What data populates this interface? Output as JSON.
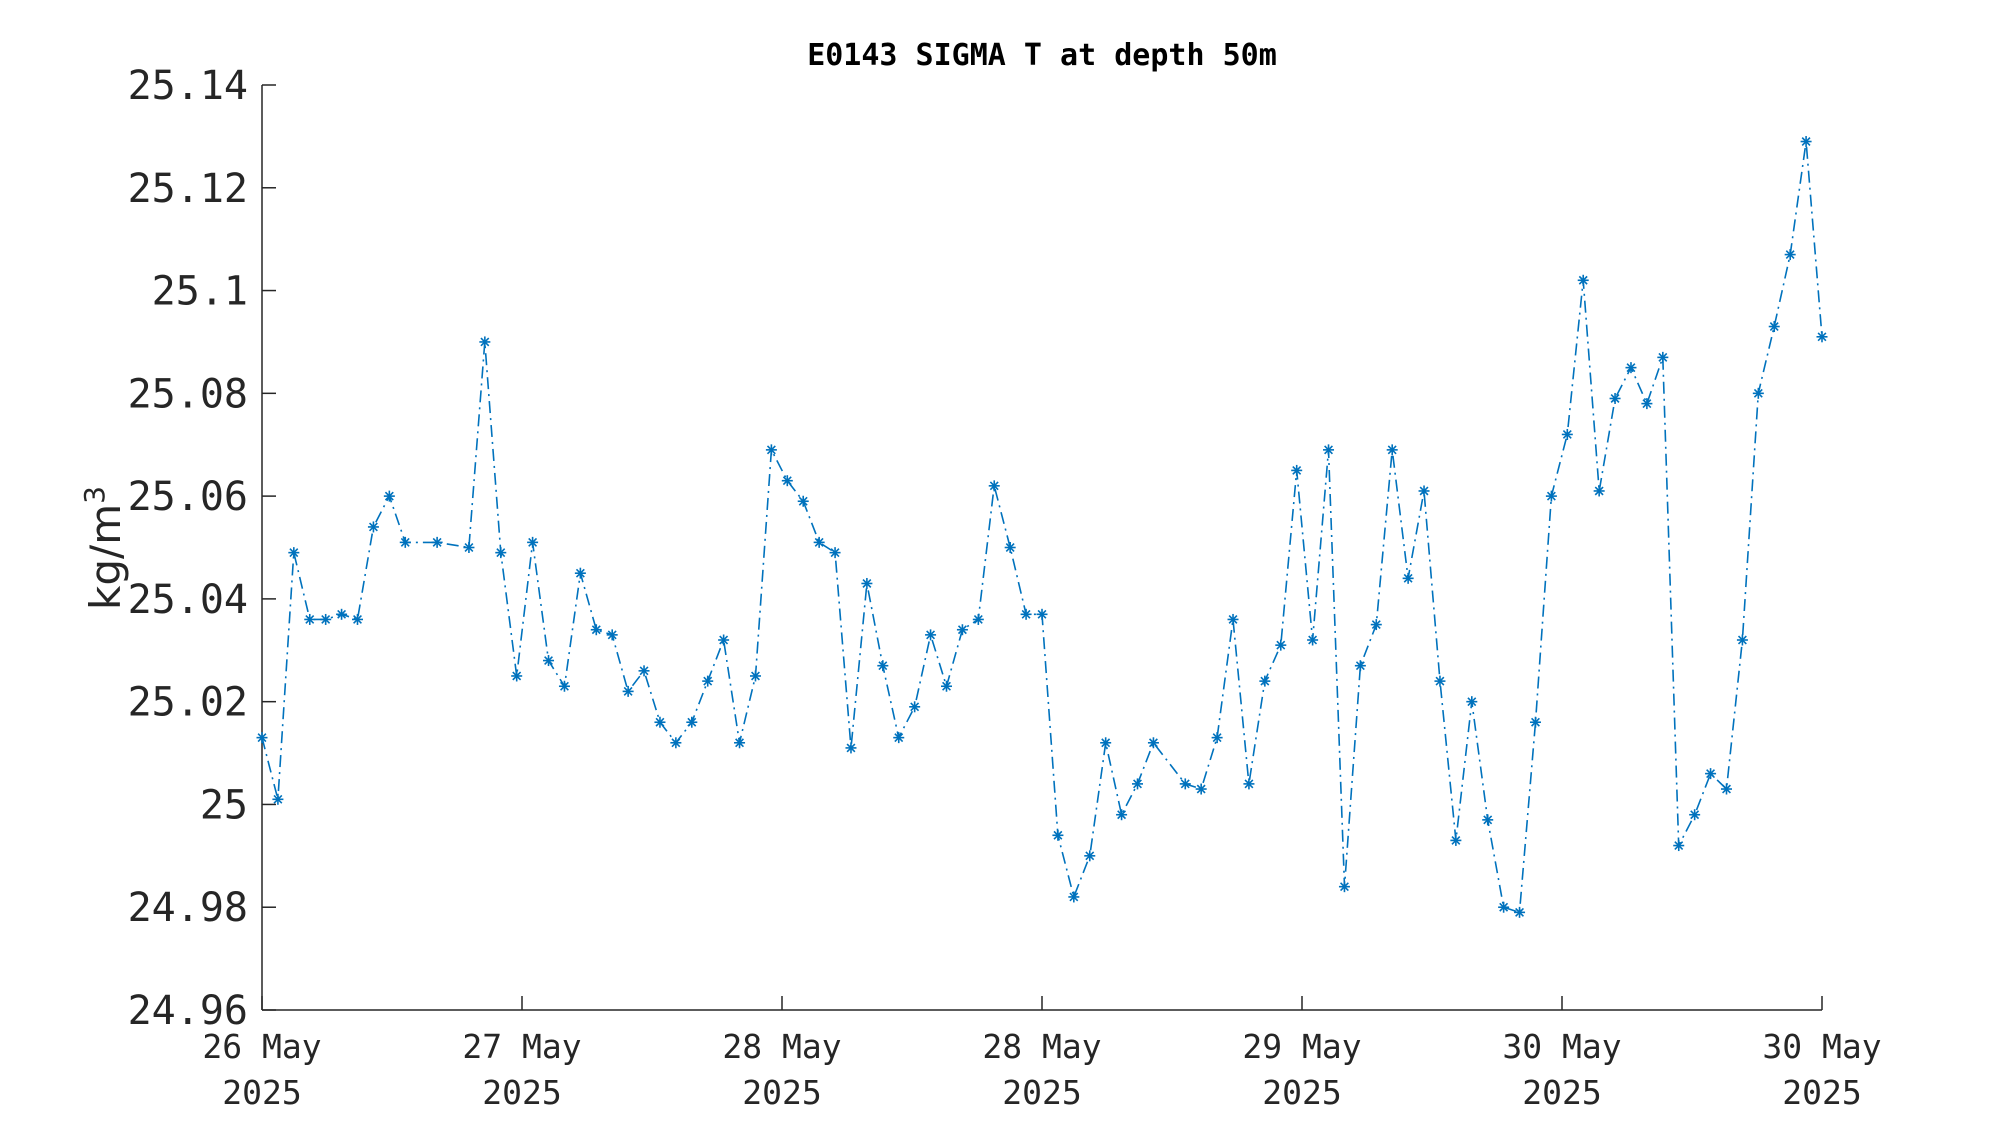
{
  "chart_data": {
    "type": "line",
    "title": "E0143 SIGMA T at depth 50m",
    "ylabel": "kg/m",
    "ylabel_superscript": "3",
    "ylim": [
      24.96,
      25.14
    ],
    "yticks": [
      24.96,
      24.98,
      25,
      25.02,
      25.04,
      25.06,
      25.08,
      25.1,
      25.12,
      25.14
    ],
    "ytick_labels": [
      "24.96",
      "24.98",
      "25",
      "25.02",
      "25.04",
      "25.06",
      "25.08",
      "25.1",
      "25.12",
      "25.14"
    ],
    "xlim": [
      0,
      6
    ],
    "xticks": [
      0,
      1,
      2,
      3,
      4,
      5,
      6
    ],
    "xtick_labels": [
      [
        "26 May",
        "2025"
      ],
      [
        "27 May",
        "2025"
      ],
      [
        "28 May",
        "2025"
      ],
      [
        "28 May",
        "2025"
      ],
      [
        "29 May",
        "2025"
      ],
      [
        "30 May",
        "2025"
      ],
      [
        "30 May",
        "2025"
      ]
    ],
    "marker": "asterisk",
    "line_style": "dash-dot",
    "color": "#0072BD",
    "grid": false,
    "series": [
      {
        "x": [
          0,
          0.0612,
          0.1224,
          0.1837,
          0.2449,
          0.3061,
          0.3673,
          0.4286,
          0.4898,
          0.551,
          0.6735,
          0.7959,
          0.8571,
          0.9184,
          0.9796,
          1.0408,
          1.102,
          1.1633,
          1.2245,
          1.2857,
          1.3469,
          1.4082,
          1.4694,
          1.5306,
          1.5918,
          1.6531,
          1.7143,
          1.7755,
          1.8367,
          1.898,
          1.9592,
          2.0204,
          2.0816,
          2.1429,
          2.2041,
          2.2653,
          2.3265,
          2.3878,
          2.449,
          2.5102,
          2.5714,
          2.6327,
          2.6939,
          2.7551,
          2.8163,
          2.8776,
          2.9388,
          3.0,
          3.0612,
          3.1224,
          3.1837,
          3.2449,
          3.3061,
          3.3673,
          3.4286,
          3.551,
          3.6122,
          3.6735,
          3.7347,
          3.7959,
          3.8571,
          3.9184,
          3.9796,
          4.0408,
          4.102,
          4.1633,
          4.2245,
          4.2857,
          4.3469,
          4.4082,
          4.4694,
          4.5306,
          4.5918,
          4.6531,
          4.7143,
          4.7755,
          4.8367,
          4.898,
          4.9592,
          5.0204,
          5.0816,
          5.1429,
          5.2041,
          5.2653,
          5.3265,
          5.3878,
          5.449,
          5.5102,
          5.5714,
          5.6327,
          5.6939,
          5.7551,
          5.8163,
          5.8776,
          5.9388,
          6.0
        ],
        "y": [
          25.013,
          25.001,
          25.049,
          25.036,
          25.036,
          25.037,
          25.036,
          25.054,
          25.06,
          25.051,
          25.051,
          25.05,
          25.09,
          25.049,
          25.025,
          25.051,
          25.028,
          25.023,
          25.045,
          25.034,
          25.033,
          25.022,
          25.026,
          25.016,
          25.012,
          25.016,
          25.024,
          25.032,
          25.012,
          25.025,
          25.069,
          25.063,
          25.059,
          25.051,
          25.049,
          25.011,
          25.043,
          25.027,
          25.013,
          25.019,
          25.033,
          25.023,
          25.034,
          25.036,
          25.062,
          25.05,
          25.037,
          25.037,
          24.994,
          24.982,
          24.99,
          25.012,
          24.998,
          25.004,
          25.012,
          25.004,
          25.003,
          25.013,
          25.036,
          25.004,
          25.024,
          25.031,
          25.065,
          25.032,
          25.069,
          24.984,
          25.027,
          25.035,
          25.069,
          25.044,
          25.061,
          25.024,
          24.993,
          25.02,
          24.997,
          24.98,
          24.979,
          25.016,
          25.06,
          25.072,
          25.102,
          25.061,
          25.079,
          25.085,
          25.078,
          25.087,
          24.992,
          24.998,
          25.006,
          25.003,
          25.032,
          25.08,
          25.093,
          25.107,
          25.129,
          25.091
        ]
      }
    ]
  }
}
